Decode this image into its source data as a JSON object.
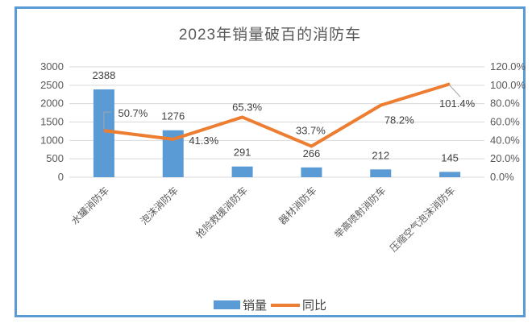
{
  "chart_data": {
    "type": "combo",
    "title": "2023年销量破百的消防车",
    "categories": [
      "水罐消防车",
      "泡沫消防车",
      "抢险救援消防车",
      "器材消防车",
      "举高喷射消防车",
      "压缩空气泡沫消防车"
    ],
    "series": [
      {
        "name": "销量",
        "type": "bar",
        "axis": "left",
        "values": [
          2388,
          1276,
          291,
          266,
          212,
          145
        ],
        "labels": [
          "2388",
          "1276",
          "291",
          "266",
          "212",
          "145"
        ],
        "color": "#5B9BD5"
      },
      {
        "name": "同比",
        "type": "line",
        "axis": "right",
        "values": [
          50.7,
          41.3,
          65.3,
          33.7,
          78.2,
          101.4
        ],
        "labels": [
          "50.7%",
          "41.3%",
          "65.3%",
          "33.7%",
          "78.2%",
          "101.4%"
        ],
        "color": "#ED7D31"
      }
    ],
    "left_axis": {
      "min": 0,
      "max": 3000,
      "step": 500,
      "tick_labels": [
        "0",
        "500",
        "1000",
        "1500",
        "2000",
        "2500",
        "3000"
      ]
    },
    "right_axis": {
      "min": 0,
      "max": 120,
      "step": 20,
      "tick_labels": [
        "0.0%",
        "20.0%",
        "40.0%",
        "60.0%",
        "80.0%",
        "100.0%",
        "120.0%"
      ]
    },
    "legend": {
      "position": "bottom",
      "entries": [
        "销量",
        "同比"
      ]
    },
    "grid": true
  },
  "colors": {
    "bar": "#5B9BD5",
    "line": "#ED7D31",
    "gridline": "#D9D9D9",
    "frame_border": "#5B9BD5",
    "title_text": "#595959",
    "axis_text": "#595959",
    "data_label_text": "#404040",
    "leader_line": "#A6A6A6",
    "background": "#FFFFFF"
  }
}
